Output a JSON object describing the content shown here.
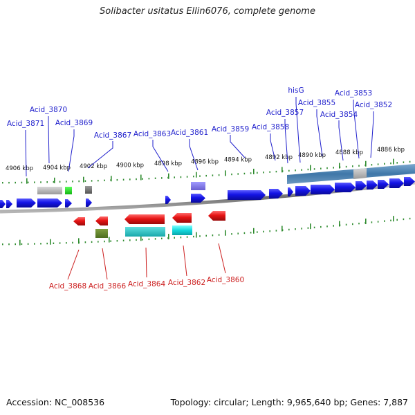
{
  "title": "Solibacter usitatus Ellin6076, complete genome",
  "footer": {
    "accession": "Accession: NC_008536",
    "summary": "Topology: circular; Length: 9,965,640 bp; Genes: 7,887"
  },
  "colors": {
    "forward_gene": "#1414e6",
    "reverse_gene": "#e61414",
    "backbone": "#8a8a8a",
    "tick": "#2e8b2e",
    "label_forward": "#1e1ecc",
    "label_reverse": "#cc1e1e"
  },
  "scale_labels": [
    "4906 kbp",
    "4904 kbp",
    "4902 kbp",
    "4900 kbp",
    "4898 kbp",
    "4896 kbp",
    "4894 kbp",
    "4892 kbp",
    "4890 kbp",
    "4888 kbp",
    "4886 kbp"
  ],
  "forward_gene_labels": [
    "Acid_3871",
    "Acid_3870",
    "Acid_3869",
    "Acid_3867",
    "Acid_3863",
    "Acid_3861",
    "Acid_3859",
    "Acid_3858",
    "Acid_3857",
    "hisG",
    "Acid_3855",
    "Acid_3854",
    "Acid_3853",
    "Acid_3852"
  ],
  "reverse_gene_labels": [
    "Acid_3868",
    "Acid_3866",
    "Acid_3864",
    "Acid_3862",
    "Acid_3860"
  ]
}
